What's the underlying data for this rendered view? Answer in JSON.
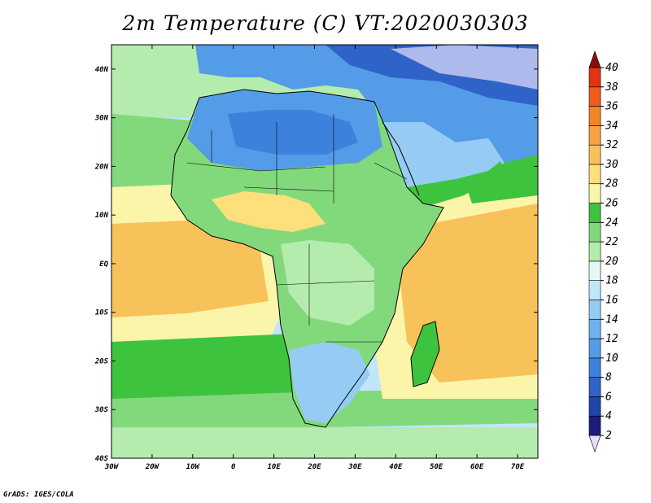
{
  "title": "2m Temperature (C) VT:2020030303",
  "credit": "GrADS: IGES/COLA",
  "map": {
    "lon_range": [
      -30,
      75
    ],
    "lat_range": [
      -40,
      45
    ],
    "lon_ticks": [
      {
        "value": -30,
        "label": "30W"
      },
      {
        "value": -20,
        "label": "20W"
      },
      {
        "value": -10,
        "label": "10W"
      },
      {
        "value": 0,
        "label": "0"
      },
      {
        "value": 10,
        "label": "10E"
      },
      {
        "value": 20,
        "label": "20E"
      },
      {
        "value": 30,
        "label": "30E"
      },
      {
        "value": 40,
        "label": "40E"
      },
      {
        "value": 50,
        "label": "50E"
      },
      {
        "value": 60,
        "label": "60E"
      },
      {
        "value": 70,
        "label": "70E"
      }
    ],
    "lat_ticks": [
      {
        "value": 40,
        "label": "40N"
      },
      {
        "value": 30,
        "label": "30N"
      },
      {
        "value": 20,
        "label": "20N"
      },
      {
        "value": 10,
        "label": "10N"
      },
      {
        "value": 0,
        "label": "EQ"
      },
      {
        "value": -10,
        "label": "10S"
      },
      {
        "value": -20,
        "label": "20S"
      },
      {
        "value": -30,
        "label": "30S"
      },
      {
        "value": -40,
        "label": "40S"
      }
    ]
  },
  "colorbar": {
    "labels": [
      "2",
      "4",
      "6",
      "8",
      "10",
      "12",
      "14",
      "16",
      "18",
      "20",
      "22",
      "24",
      "26",
      "28",
      "30",
      "32",
      "34",
      "36",
      "38",
      "40"
    ],
    "colors": [
      "#1c1c7a",
      "#2244a8",
      "#2f63c8",
      "#3c82dc",
      "#559ce8",
      "#70b2ef",
      "#96cbf4",
      "#c2e6f9",
      "#e6f8f3",
      "#b4ecae",
      "#82d97c",
      "#3ec33e",
      "#fbf5aa",
      "#fde07c",
      "#f8c25a",
      "#f6a540",
      "#f48424",
      "#f05c1c",
      "#e03514",
      "#c01212",
      "#8a0c0c"
    ],
    "low_end_color": "#e4e0fb"
  }
}
